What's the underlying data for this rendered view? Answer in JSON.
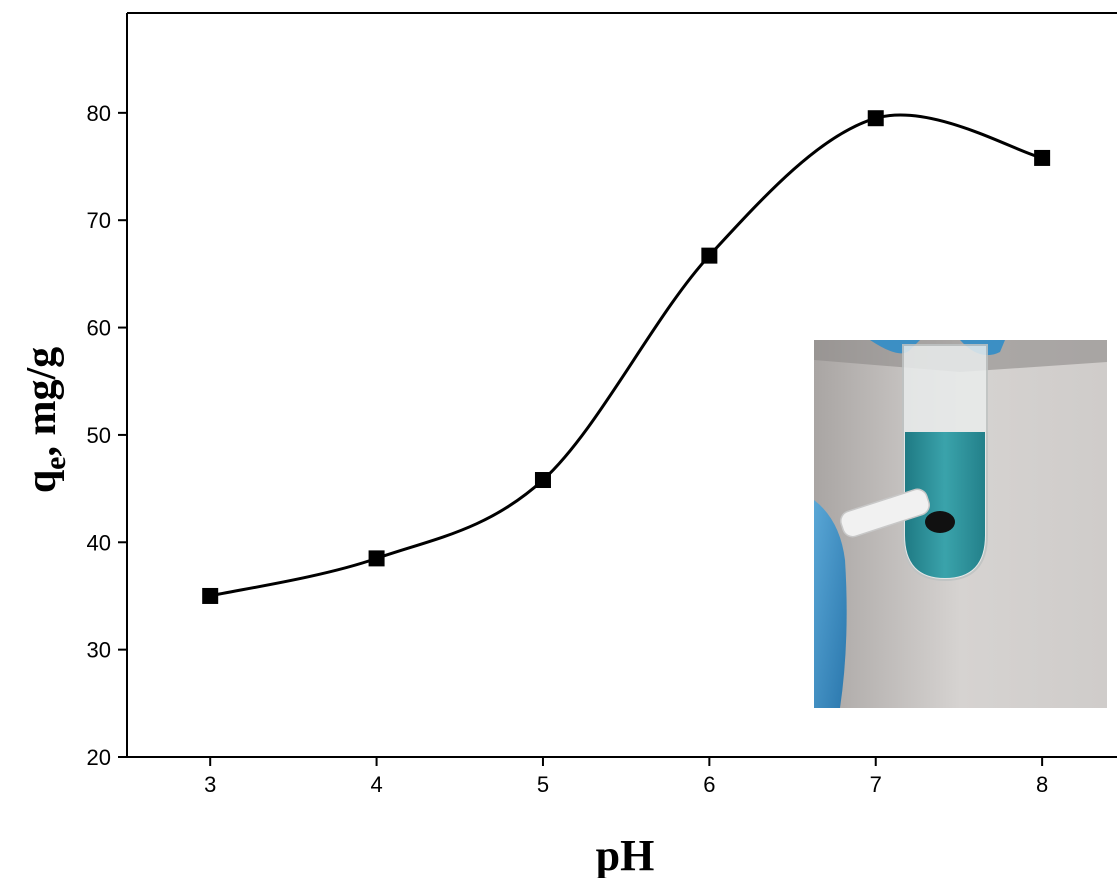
{
  "chart_data": {
    "type": "line",
    "title": "",
    "xlabel": "pH",
    "ylabel_main": "q",
    "ylabel_sub": "e",
    "ylabel_rest": ", mg/g",
    "x": [
      3,
      4,
      5,
      6,
      7,
      8
    ],
    "series": [
      {
        "values": [
          35.0,
          38.5,
          45.8,
          66.7,
          79.5,
          75.8
        ]
      }
    ],
    "xlim": [
      2.5,
      8.45
    ],
    "ylim": [
      20,
      89.3
    ],
    "xticks": [
      3,
      4,
      5,
      6,
      7,
      8
    ],
    "yticks": [
      20,
      30,
      40,
      50,
      60,
      70,
      80
    ],
    "grid": false,
    "marker": "square",
    "smooth": true,
    "line_color": "#000000",
    "inset": {
      "description_icon": "photo-vial-with-magnet-icon",
      "colors": {
        "background_wall": "#c9c6c4",
        "liquid": "#2d8d95",
        "glove": "#3c8fc4",
        "magnet": "#eeeeee",
        "adsorbent": "#111111"
      }
    }
  }
}
